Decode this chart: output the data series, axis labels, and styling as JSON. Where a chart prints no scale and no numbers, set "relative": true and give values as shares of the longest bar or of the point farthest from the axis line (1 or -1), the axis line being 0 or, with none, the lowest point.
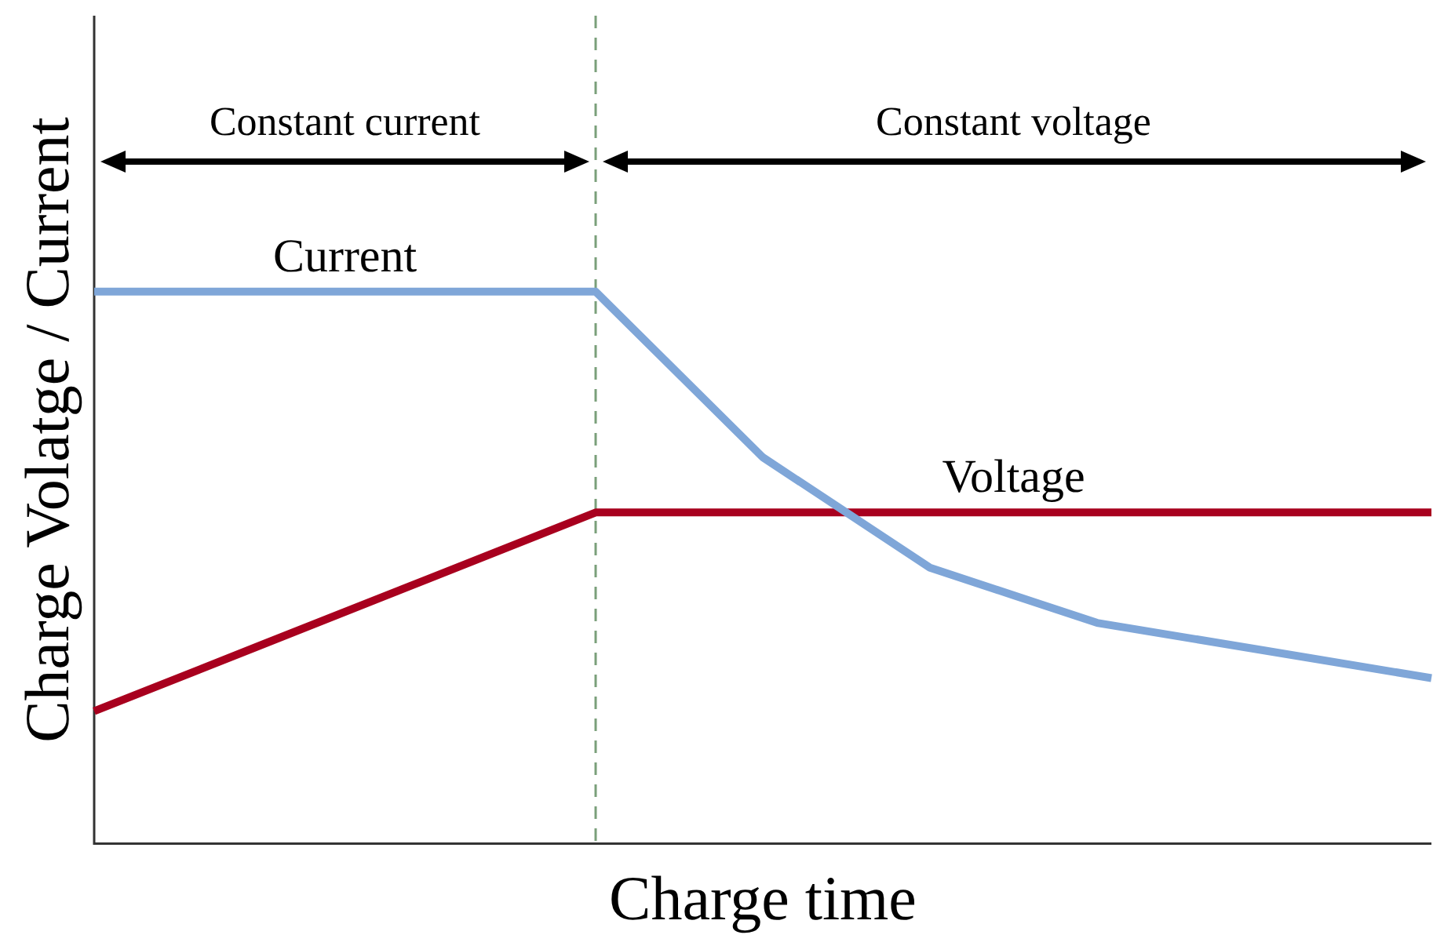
{
  "chart_data": {
    "type": "line",
    "relative": true,
    "xlabel": "Charge time",
    "ylabel": "Charge Volatge / Current",
    "categories": [
      null,
      null,
      null,
      null,
      null,
      null,
      null,
      null,
      null
    ],
    "marker": "none",
    "line_style": "solid",
    "series": [
      {
        "name": "Current",
        "color": "#7fa6d8",
        "values": [
          1,
          1,
          1,
          1,
          0.7,
          0.5,
          0.4,
          0.35,
          0.3
        ]
      },
      {
        "name": "Voltage",
        "color": "#a8001e",
        "values": [
          0.24,
          0.36,
          0.48,
          0.6,
          0.6,
          0.6,
          0.6,
          0.6,
          0.6
        ]
      }
    ],
    "annotations": [
      "Constant current",
      "Constant voltage"
    ]
  }
}
